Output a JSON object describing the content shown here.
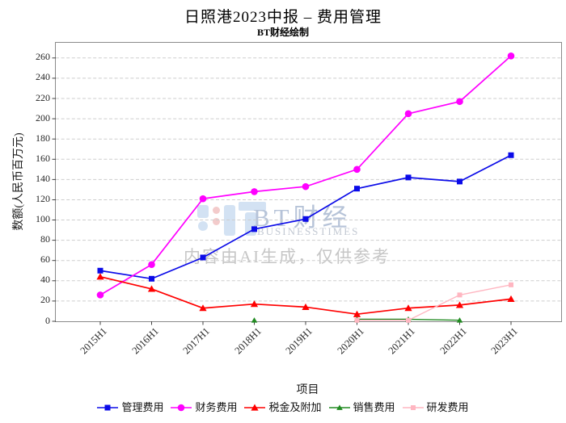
{
  "title": "日照港2023中报 – 费用管理",
  "subtitle": "BT财经绘制",
  "watermark": {
    "brand": "BT财经",
    "brand_sub": "BUSINESSTIMES",
    "ai_note": "内容由AI生成，仅供参考"
  },
  "chart_data": {
    "type": "line",
    "title": "日照港2023中报 – 费用管理",
    "xlabel": "项目",
    "ylabel": "数额(人民币百万元)",
    "categories": [
      "2015H1",
      "2016H1",
      "2017H1",
      "2018H1",
      "2019H1",
      "2020H1",
      "2021H1",
      "2022H1",
      "2023H1"
    ],
    "ylim": [
      0,
      275
    ],
    "yticks": [
      0,
      20,
      40,
      60,
      80,
      100,
      120,
      140,
      160,
      180,
      200,
      220,
      240,
      260
    ],
    "grid": "horizontal-dashed",
    "legend_position": "bottom",
    "series": [
      {
        "name": "管理费用",
        "color": "#0b0be8",
        "marker": "square",
        "values": [
          50,
          42,
          63,
          91,
          101,
          131,
          142,
          138,
          164
        ]
      },
      {
        "name": "财务费用",
        "color": "#ff00ff",
        "marker": "circle",
        "values": [
          26,
          56,
          121,
          128,
          133,
          150,
          205,
          217,
          262
        ]
      },
      {
        "name": "税金及附加",
        "color": "#ff0000",
        "marker": "triangle",
        "values": [
          44,
          32,
          13,
          17,
          14,
          7,
          13,
          16,
          22
        ]
      },
      {
        "name": "销售费用",
        "color": "#228b22",
        "marker": "triangle-small",
        "values": [
          null,
          null,
          null,
          1,
          null,
          2,
          2,
          1,
          null
        ]
      },
      {
        "name": "研发费用",
        "color": "#ffb6c1",
        "marker": "square-small",
        "values": [
          null,
          null,
          null,
          null,
          null,
          1,
          1,
          26,
          36
        ]
      }
    ]
  }
}
